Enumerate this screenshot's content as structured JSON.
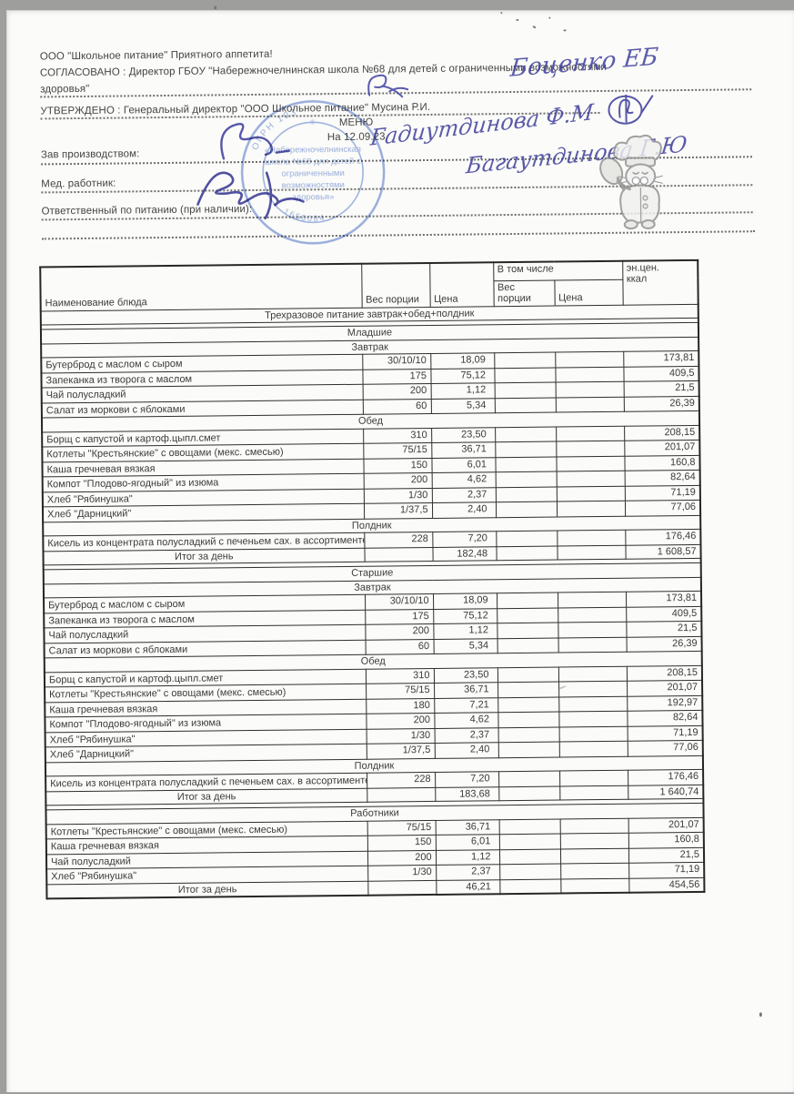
{
  "header": {
    "company": "ООО \"Школьное питание\" Приятного аппетита!",
    "agreed1": "СОГЛАСОВАНО : Директор ГБОУ \"Набережночелнинская школа №68 для детей с ограниченными возможностями",
    "agreed2": "здоровья\"",
    "approved": "УТВЕРЖДЕНО : Генеральный директор \"ООО Школьное питание\" Мусина Р.И.",
    "menu_title": "МЕНЮ",
    "menu_date": "На 12.09.23",
    "fields": [
      {
        "label": "Зав производством:"
      },
      {
        "label": "Мед. работник:"
      },
      {
        "label": "Ответственный по питанию (при наличии):"
      }
    ],
    "signatures": {
      "director": "Боценко ЕБ",
      "production": "Гадиутдинова Ф.М",
      "medical": "Багаутдинова Г.Ю"
    }
  },
  "stamp": {
    "color": "#5b7ec9",
    "rim_top": "ОГРН 103",
    "rim_bottom": "1650084",
    "lines": [
      "«Набережночелнинская",
      "школа №68 для детей с",
      "ограниченными",
      "возможностями",
      "здоровья»"
    ]
  },
  "table": {
    "headers": {
      "name": "Наименование блюда",
      "weight": "Вес порции",
      "price": "Цена",
      "including": "В том числе",
      "weight2": "Вес порции",
      "price2": "Цена",
      "energy1": "эн.цен.",
      "energy2": "ккал"
    },
    "rows": [
      {
        "t": "sec",
        "label": "Трехразовое питание завтрак+обед+полдник"
      },
      {
        "t": "thin"
      },
      {
        "t": "sec",
        "label": "Младшие"
      },
      {
        "t": "sec",
        "label": "Завтрак"
      },
      {
        "t": "dish",
        "name": "Бутерброд с маслом с сыром",
        "w": "30/10/10",
        "p": "18,09",
        "kcal": "173,81"
      },
      {
        "t": "dish",
        "name": "Запеканка из творога с маслом",
        "w": "175",
        "p": "75,12",
        "kcal": "409,5"
      },
      {
        "t": "dish",
        "name": "Чай полусладкий",
        "w": "200",
        "p": "1,12",
        "kcal": "21,5"
      },
      {
        "t": "dish",
        "name": "Салат из моркови с яблоками",
        "w": "60",
        "p": "5,34",
        "kcal": "26,39"
      },
      {
        "t": "sec",
        "label": "Обед"
      },
      {
        "t": "dish",
        "name": "Борщ с капустой и картоф.цыпл.смет",
        "w": "310",
        "p": "23,50",
        "kcal": "208,15"
      },
      {
        "t": "dish",
        "name": "Котлеты \"Крестьянские\" с овощами (мекс. смесью)",
        "w": "75/15",
        "p": "36,71",
        "kcal": "201,07"
      },
      {
        "t": "dish",
        "name": "Каша гречневая вязкая",
        "w": "150",
        "p": "6,01",
        "kcal": "160,8"
      },
      {
        "t": "dish",
        "name": "Компот \"Плодово-ягодный\" из изюма",
        "w": "200",
        "p": "4,62",
        "kcal": "82,64"
      },
      {
        "t": "dish",
        "name": "Хлеб \"Рябинушка\"",
        "w": "1/30",
        "p": "2,37",
        "kcal": "71,19"
      },
      {
        "t": "dish",
        "name": "Хлеб \"Дарницкий\"",
        "w": "1/37,5",
        "p": "2,40",
        "kcal": "77,06"
      },
      {
        "t": "sec",
        "label": "Полдник"
      },
      {
        "t": "dish",
        "name": "Кисель из концентрата полусладкий с печеньем сах. в ассортименте",
        "w": "228",
        "p": "7,20",
        "kcal": "176,46"
      },
      {
        "t": "total",
        "label": "Итог за день",
        "p": "182,48",
        "kcal": "1 608,57"
      },
      {
        "t": "thin"
      },
      {
        "t": "sec",
        "label": "Старшие"
      },
      {
        "t": "sec",
        "label": "Завтрак"
      },
      {
        "t": "dish",
        "name": "Бутерброд с маслом с сыром",
        "w": "30/10/10",
        "p": "18,09",
        "kcal": "173,81"
      },
      {
        "t": "dish",
        "name": "Запеканка из творога с маслом",
        "w": "175",
        "p": "75,12",
        "kcal": "409,5"
      },
      {
        "t": "dish",
        "name": "Чай полусладкий",
        "w": "200",
        "p": "1,12",
        "kcal": "21,5"
      },
      {
        "t": "dish",
        "name": "Салат из моркови с яблоками",
        "w": "60",
        "p": "5,34",
        "kcal": "26,39"
      },
      {
        "t": "sec",
        "label": "Обед"
      },
      {
        "t": "dish",
        "name": "Борщ с капустой и картоф.цыпл.смет",
        "w": "310",
        "p": "23,50",
        "kcal": "208,15"
      },
      {
        "t": "dish",
        "name": "Котлеты \"Крестьянские\" с овощами (мекс. смесью)",
        "w": "75/15",
        "p": "36,71",
        "kcal": "201,07"
      },
      {
        "t": "dish",
        "name": "Каша гречневая вязкая",
        "w": "180",
        "p": "7,21",
        "kcal": "192,97"
      },
      {
        "t": "dish",
        "name": "Компот \"Плодово-ягодный\" из изюма",
        "w": "200",
        "p": "4,62",
        "kcal": "82,64"
      },
      {
        "t": "dish",
        "name": "Хлеб \"Рябинушка\"",
        "w": "1/30",
        "p": "2,37",
        "kcal": "71,19"
      },
      {
        "t": "dish",
        "name": "Хлеб \"Дарницкий\"",
        "w": "1/37,5",
        "p": "2,40",
        "kcal": "77,06"
      },
      {
        "t": "sec",
        "label": "Полдник"
      },
      {
        "t": "dish",
        "name": "Кисель из концентрата полусладкий с печеньем сах. в ассортименте",
        "w": "228",
        "p": "7,20",
        "kcal": "176,46"
      },
      {
        "t": "total",
        "label": "Итог за день",
        "p": "183,68",
        "kcal": "1 640,74"
      },
      {
        "t": "thin"
      },
      {
        "t": "sec",
        "label": "Работники"
      },
      {
        "t": "dish",
        "name": "Котлеты \"Крестьянские\" с овощами (мекс. смесью)",
        "w": "75/15",
        "p": "36,71",
        "kcal": "201,07"
      },
      {
        "t": "dish",
        "name": "Каша гречневая вязкая",
        "w": "150",
        "p": "6,01",
        "kcal": "160,8"
      },
      {
        "t": "dish",
        "name": "Чай полусладкий",
        "w": "200",
        "p": "1,12",
        "kcal": "21,5"
      },
      {
        "t": "dish",
        "name": "Хлеб \"Рябинушка\"",
        "w": "1/30",
        "p": "2,37",
        "kcal": "71,19"
      },
      {
        "t": "total",
        "label": "Итог за день",
        "p": "46,21",
        "kcal": "454,56"
      }
    ]
  }
}
